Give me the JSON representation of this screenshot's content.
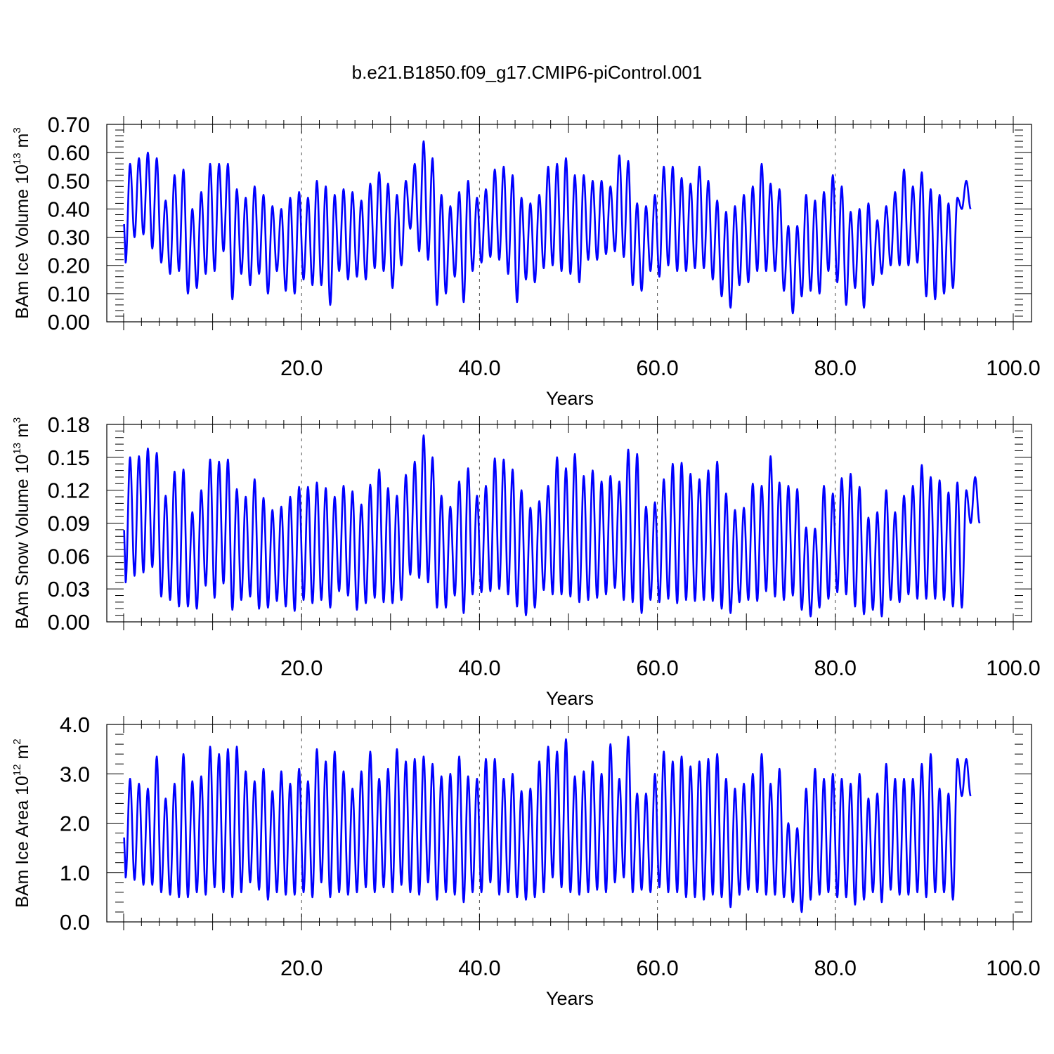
{
  "title": "b.e21.B1850.f09_g17.CMIP6-piControl.001",
  "chart_data": [
    {
      "type": "line",
      "ylabel": "BAm Ice Volume",
      "yunit_prefix": "10",
      "yunit_exp": "13",
      "yunit_suffix": " m",
      "yunit_suffix_exp": "3",
      "xlabel": "Years",
      "xlim": [
        0,
        100
      ],
      "ylim": [
        0,
        0.7
      ],
      "x_ticks": [
        "20.0",
        "40.0",
        "60.0",
        "80.0",
        "100.0"
      ],
      "y_ticks": [
        "0.00",
        "0.10",
        "0.20",
        "0.30",
        "0.40",
        "0.50",
        "0.60",
        "0.70"
      ],
      "grid": "vertical dashed at labeled x ticks",
      "series_color": "#0000ff",
      "annual_max": [
        0.56,
        0.58,
        0.6,
        0.58,
        0.43,
        0.52,
        0.54,
        0.4,
        0.46,
        0.56,
        0.56,
        0.56,
        0.47,
        0.44,
        0.48,
        0.45,
        0.41,
        0.4,
        0.44,
        0.46,
        0.44,
        0.5,
        0.48,
        0.45,
        0.47,
        0.46,
        0.43,
        0.49,
        0.53,
        0.49,
        0.45,
        0.5,
        0.56,
        0.64,
        0.58,
        0.45,
        0.41,
        0.46,
        0.5,
        0.44,
        0.47,
        0.54,
        0.55,
        0.52,
        0.44,
        0.42,
        0.45,
        0.55,
        0.56,
        0.58,
        0.52,
        0.52,
        0.5,
        0.5,
        0.48,
        0.59,
        0.57,
        0.42,
        0.41,
        0.45,
        0.55,
        0.55,
        0.51,
        0.49,
        0.55,
        0.5,
        0.43,
        0.39,
        0.41,
        0.45,
        0.48,
        0.56,
        0.49,
        0.47,
        0.34,
        0.34,
        0.45,
        0.43,
        0.46,
        0.52,
        0.48,
        0.39,
        0.4,
        0.42,
        0.36,
        0.41,
        0.46,
        0.54,
        0.48,
        0.53,
        0.47,
        0.45,
        0.42,
        0.44,
        0.5
      ],
      "annual_min": [
        0.21,
        0.3,
        0.31,
        0.26,
        0.21,
        0.17,
        0.18,
        0.1,
        0.12,
        0.17,
        0.18,
        0.25,
        0.08,
        0.17,
        0.13,
        0.17,
        0.1,
        0.18,
        0.11,
        0.1,
        0.15,
        0.13,
        0.13,
        0.06,
        0.18,
        0.15,
        0.16,
        0.15,
        0.19,
        0.18,
        0.12,
        0.2,
        0.33,
        0.25,
        0.22,
        0.06,
        0.1,
        0.16,
        0.07,
        0.18,
        0.21,
        0.23,
        0.22,
        0.17,
        0.07,
        0.15,
        0.14,
        0.19,
        0.2,
        0.18,
        0.17,
        0.14,
        0.22,
        0.22,
        0.24,
        0.25,
        0.23,
        0.13,
        0.11,
        0.18,
        0.16,
        0.2,
        0.18,
        0.18,
        0.19,
        0.19,
        0.15,
        0.09,
        0.05,
        0.13,
        0.14,
        0.18,
        0.18,
        0.18,
        0.11,
        0.03,
        0.09,
        0.11,
        0.1,
        0.18,
        0.14,
        0.06,
        0.12,
        0.05,
        0.13,
        0.17,
        0.2,
        0.2,
        0.2,
        0.21,
        0.09,
        0.08,
        0.1,
        0.12,
        0.4
      ]
    },
    {
      "type": "line",
      "ylabel": "BAm Snow Volume",
      "yunit_prefix": "10",
      "yunit_exp": "13",
      "yunit_suffix": " m",
      "yunit_suffix_exp": "3",
      "xlabel": "Years",
      "xlim": [
        0,
        100
      ],
      "ylim": [
        0,
        0.18
      ],
      "x_ticks": [
        "20.0",
        "40.0",
        "60.0",
        "80.0",
        "100.0"
      ],
      "y_ticks": [
        "0.00",
        "0.03",
        "0.06",
        "0.09",
        "0.12",
        "0.15",
        "0.18"
      ],
      "grid": "vertical dashed at labeled x ticks",
      "series_color": "#0000ff",
      "annual_max": [
        0.15,
        0.151,
        0.158,
        0.154,
        0.115,
        0.137,
        0.139,
        0.1,
        0.12,
        0.148,
        0.146,
        0.148,
        0.121,
        0.114,
        0.13,
        0.113,
        0.102,
        0.105,
        0.114,
        0.123,
        0.123,
        0.127,
        0.122,
        0.114,
        0.124,
        0.119,
        0.107,
        0.125,
        0.139,
        0.122,
        0.115,
        0.134,
        0.146,
        0.17,
        0.15,
        0.115,
        0.105,
        0.128,
        0.14,
        0.115,
        0.124,
        0.149,
        0.148,
        0.139,
        0.12,
        0.104,
        0.11,
        0.124,
        0.15,
        0.14,
        0.153,
        0.133,
        0.138,
        0.128,
        0.133,
        0.128,
        0.157,
        0.153,
        0.105,
        0.109,
        0.13,
        0.144,
        0.145,
        0.135,
        0.13,
        0.138,
        0.146,
        0.117,
        0.102,
        0.104,
        0.126,
        0.124,
        0.151,
        0.127,
        0.124,
        0.121,
        0.086,
        0.085,
        0.124,
        0.117,
        0.131,
        0.135,
        0.123,
        0.095,
        0.1,
        0.12,
        0.1,
        0.115,
        0.124,
        0.143,
        0.132,
        0.129,
        0.118,
        0.127,
        0.12,
        0.132
      ],
      "annual_min": [
        0.036,
        0.042,
        0.045,
        0.05,
        0.023,
        0.02,
        0.014,
        0.014,
        0.012,
        0.033,
        0.022,
        0.035,
        0.011,
        0.02,
        0.023,
        0.012,
        0.013,
        0.019,
        0.014,
        0.01,
        0.02,
        0.017,
        0.02,
        0.013,
        0.028,
        0.024,
        0.011,
        0.017,
        0.022,
        0.018,
        0.017,
        0.02,
        0.043,
        0.04,
        0.036,
        0.013,
        0.013,
        0.024,
        0.008,
        0.025,
        0.027,
        0.028,
        0.03,
        0.025,
        0.014,
        0.006,
        0.013,
        0.029,
        0.025,
        0.025,
        0.023,
        0.018,
        0.02,
        0.022,
        0.025,
        0.031,
        0.02,
        0.018,
        0.008,
        0.02,
        0.018,
        0.021,
        0.017,
        0.02,
        0.019,
        0.02,
        0.019,
        0.012,
        0.008,
        0.018,
        0.02,
        0.019,
        0.028,
        0.023,
        0.02,
        0.024,
        0.011,
        0.005,
        0.013,
        0.021,
        0.027,
        0.025,
        0.014,
        0.007,
        0.011,
        0.005,
        0.02,
        0.018,
        0.025,
        0.021,
        0.021,
        0.021,
        0.02,
        0.014,
        0.013,
        0.09
      ]
    },
    {
      "type": "line",
      "ylabel": "BAm Ice Area",
      "yunit_prefix": "10",
      "yunit_exp": "12",
      "yunit_suffix": " m",
      "yunit_suffix_exp": "2",
      "xlabel": "Years",
      "xlim": [
        0,
        100
      ],
      "ylim": [
        0,
        4.0
      ],
      "x_ticks": [
        "20.0",
        "40.0",
        "60.0",
        "80.0",
        "100.0"
      ],
      "y_ticks": [
        "0.0",
        "1.0",
        "2.0",
        "3.0",
        "4.0"
      ],
      "grid": "vertical dashed at labeled x ticks",
      "series_color": "#0000ff",
      "annual_max": [
        2.9,
        2.8,
        2.7,
        3.35,
        2.5,
        2.8,
        3.4,
        2.85,
        2.95,
        3.55,
        3.4,
        3.5,
        3.55,
        3.05,
        2.85,
        3.1,
        2.65,
        3.05,
        2.8,
        3.1,
        2.85,
        3.5,
        3.25,
        3.45,
        3.05,
        2.7,
        3.05,
        3.45,
        2.9,
        3.1,
        3.5,
        3.25,
        3.3,
        3.35,
        3.2,
        2.95,
        3.0,
        3.35,
        2.95,
        2.9,
        3.3,
        3.3,
        2.9,
        3.0,
        2.65,
        2.7,
        3.25,
        3.55,
        3.45,
        3.7,
        2.95,
        3.05,
        3.25,
        3.0,
        3.6,
        2.9,
        3.75,
        2.6,
        2.6,
        3.0,
        3.45,
        3.25,
        3.35,
        3.15,
        3.25,
        3.3,
        3.4,
        2.9,
        2.7,
        2.8,
        3.0,
        3.4,
        2.8,
        3.1,
        2.0,
        1.9,
        2.7,
        3.1,
        2.9,
        3.0,
        2.9,
        2.8,
        3.0,
        2.5,
        2.6,
        3.2,
        2.9,
        2.9,
        2.9,
        3.2,
        3.4,
        2.7,
        2.6,
        3.3,
        3.3
      ],
      "annual_min": [
        0.9,
        0.85,
        0.75,
        0.75,
        0.6,
        0.55,
        0.5,
        0.5,
        0.6,
        0.55,
        0.7,
        0.6,
        0.5,
        0.6,
        0.8,
        0.65,
        0.45,
        0.6,
        0.55,
        0.55,
        0.6,
        0.5,
        0.8,
        0.5,
        0.6,
        0.55,
        0.6,
        0.7,
        0.6,
        0.7,
        0.6,
        0.75,
        0.6,
        0.55,
        0.8,
        0.45,
        0.6,
        0.55,
        0.4,
        0.6,
        0.6,
        0.8,
        0.55,
        0.6,
        0.5,
        0.45,
        0.5,
        0.6,
        0.9,
        0.7,
        0.6,
        0.55,
        0.6,
        0.65,
        0.6,
        0.8,
        0.9,
        0.6,
        0.65,
        0.6,
        0.7,
        0.6,
        0.6,
        0.5,
        0.5,
        0.45,
        0.55,
        0.5,
        0.3,
        0.55,
        0.65,
        0.6,
        0.55,
        0.55,
        0.5,
        0.4,
        0.2,
        0.45,
        0.55,
        0.6,
        0.5,
        0.5,
        0.35,
        0.45,
        0.6,
        0.4,
        0.65,
        0.55,
        0.55,
        0.6,
        0.5,
        0.6,
        0.6,
        0.45,
        2.55
      ]
    }
  ]
}
